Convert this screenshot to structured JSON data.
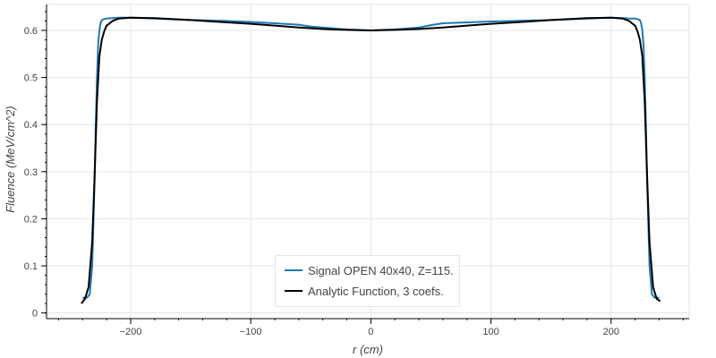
{
  "chart_data": {
    "type": "line",
    "title": "",
    "xlabel": "r (cm)",
    "ylabel": "Fluence (MeV/cm^2)",
    "xlim": [
      -270,
      265
    ],
    "ylim": [
      -0.012,
      0.655
    ],
    "grid": true,
    "legend_position": "bottom-center",
    "x_ticks": [
      -200,
      -100,
      0,
      100,
      200
    ],
    "x_tick_labels": [
      "−200",
      "−100",
      "0",
      "100",
      "200"
    ],
    "y_ticks": [
      0,
      0.1,
      0.2,
      0.3,
      0.4,
      0.5,
      0.6
    ],
    "y_tick_labels": [
      "0",
      "0.1",
      "0.2",
      "0.3",
      "0.4",
      "0.5",
      "0.6"
    ],
    "series": [
      {
        "name": "Signal OPEN 40x40, Z=115.",
        "color": "#1f77b4",
        "x": [
          -240,
          -236,
          -234,
          -232,
          -230,
          -229,
          -228,
          -227,
          -226,
          -225,
          -224,
          -222,
          -220,
          -215,
          -210,
          -200,
          -180,
          -150,
          -120,
          -100,
          -80,
          -60,
          -50,
          -40,
          -30,
          -20,
          -10,
          0,
          10,
          20,
          30,
          40,
          50,
          60,
          80,
          100,
          120,
          150,
          180,
          200,
          210,
          215,
          220,
          222,
          224,
          225,
          226,
          227,
          228,
          229,
          230,
          232,
          234,
          236,
          240
        ],
        "y": [
          0.032,
          0.033,
          0.04,
          0.1,
          0.28,
          0.4,
          0.5,
          0.57,
          0.6,
          0.615,
          0.622,
          0.624,
          0.625,
          0.626,
          0.627,
          0.627,
          0.625,
          0.622,
          0.62,
          0.618,
          0.615,
          0.612,
          0.608,
          0.606,
          0.604,
          0.602,
          0.601,
          0.6,
          0.601,
          0.602,
          0.604,
          0.606,
          0.611,
          0.615,
          0.617,
          0.619,
          0.62,
          0.622,
          0.625,
          0.627,
          0.626,
          0.625,
          0.625,
          0.624,
          0.622,
          0.615,
          0.6,
          0.57,
          0.5,
          0.4,
          0.28,
          0.1,
          0.04,
          0.033,
          0.032
        ]
      },
      {
        "name": "Analytic Function, 3 coefs.",
        "color": "#000000",
        "x": [
          -241,
          -238,
          -235,
          -232,
          -230,
          -228,
          -226,
          -224,
          -222,
          -220,
          -215,
          -210,
          -200,
          -180,
          -150,
          -120,
          -100,
          -80,
          -60,
          -40,
          -20,
          0,
          20,
          40,
          60,
          80,
          100,
          120,
          150,
          180,
          200,
          210,
          215,
          220,
          222,
          224,
          226,
          228,
          230,
          232,
          235,
          238,
          241
        ],
        "y": [
          0.02,
          0.03,
          0.055,
          0.15,
          0.29,
          0.45,
          0.545,
          0.58,
          0.598,
          0.61,
          0.62,
          0.625,
          0.627,
          0.626,
          0.622,
          0.617,
          0.614,
          0.61,
          0.606,
          0.603,
          0.601,
          0.6,
          0.601,
          0.603,
          0.606,
          0.61,
          0.614,
          0.617,
          0.622,
          0.626,
          0.627,
          0.625,
          0.62,
          0.61,
          0.598,
          0.58,
          0.545,
          0.45,
          0.29,
          0.15,
          0.055,
          0.03,
          0.025
        ]
      }
    ]
  }
}
